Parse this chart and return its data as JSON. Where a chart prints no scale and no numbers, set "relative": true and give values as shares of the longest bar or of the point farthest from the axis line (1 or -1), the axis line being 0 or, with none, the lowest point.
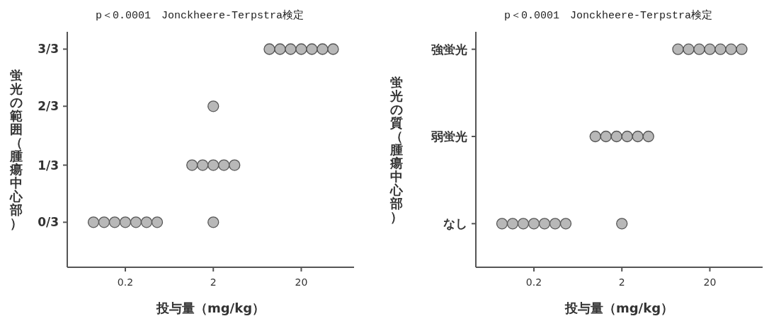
{
  "chart_data": [
    {
      "type": "scatter",
      "title": "p＜0.0001　Jonckheere-Terpstra検定",
      "xlabel": "投与量（mg/kg）",
      "ylabel": "蛍光の範囲（腫瘍中心部）",
      "categories": [
        "0.2",
        "2",
        "20"
      ],
      "series": [
        {
          "color": "#b8b8b8",
          "x": [
            "0.2",
            "0.2",
            "0.2",
            "0.2",
            "0.2",
            "0.2",
            "0.2",
            "2",
            "2",
            "2",
            "2",
            "2",
            "2",
            "2",
            "20",
            "20",
            "20",
            "20",
            "20",
            "20",
            "20"
          ],
          "values": [
            0,
            0,
            0,
            0,
            0,
            0,
            0,
            0.33,
            0.33,
            0.33,
            0.33,
            0.33,
            0.67,
            0,
            1,
            1,
            1,
            1,
            1,
            1,
            1
          ]
        }
      ],
      "ylim": [
        -0.26,
        1.1
      ],
      "yticks": [
        {
          "value": 0,
          "label": "0/3"
        },
        {
          "value": 0.33,
          "label": "1/3"
        },
        {
          "value": 0.67,
          "label": "2/3"
        },
        {
          "value": 1,
          "label": "3/3"
        }
      ],
      "marker": "circle"
    },
    {
      "type": "scatter",
      "title": "p＜0.0001　Jonckheere-Terpstra検定",
      "xlabel": "投与量（mg/kg）",
      "ylabel": "蛍光の質（腫瘍中心部）",
      "categories": [
        "0.2",
        "2",
        "20"
      ],
      "relative": true,
      "series": [
        {
          "color": "#b8b8b8",
          "x": [
            "0.2",
            "0.2",
            "0.2",
            "0.2",
            "0.2",
            "0.2",
            "0.2",
            "2",
            "2",
            "2",
            "2",
            "2",
            "2",
            "2",
            "20",
            "20",
            "20",
            "20",
            "20",
            "20",
            "20"
          ],
          "values": [
            0.2,
            0.2,
            0.2,
            0.2,
            0.2,
            0.2,
            0.2,
            0.6,
            0.6,
            0.6,
            0.6,
            0.6,
            0.6,
            0.2,
            1,
            1,
            1,
            1,
            1,
            1,
            1
          ]
        }
      ],
      "annotations": [
        "強蛍光",
        "弱蛍光",
        "なし"
      ],
      "marker": "circle"
    }
  ]
}
